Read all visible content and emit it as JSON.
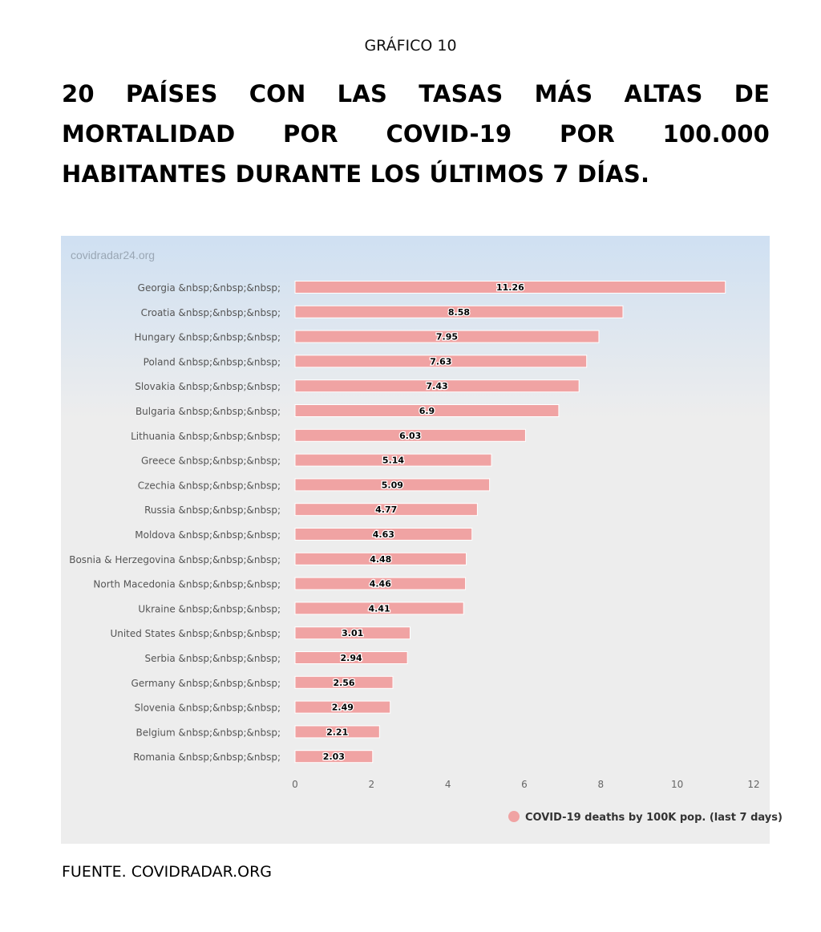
{
  "header": {
    "kicker": "GRÁFICO 10",
    "title": "20 PAÍSES CON LAS TASAS MÁS ALTAS DE MORTALIDAD POR COVID-19 POR 100.000 HABITANTES DURANTE LOS ÚLTIMOS 7 DÍAS."
  },
  "footer": {
    "source": "FUENTE. COVIDRADAR.ORG"
  },
  "chart_data": {
    "type": "bar",
    "orientation": "horizontal",
    "watermark": "covidradar24.org",
    "categories": [
      "Georgia &nbsp;&nbsp;&nbsp;",
      "Croatia &nbsp;&nbsp;&nbsp;",
      "Hungary &nbsp;&nbsp;&nbsp;",
      "Poland &nbsp;&nbsp;&nbsp;",
      "Slovakia &nbsp;&nbsp;&nbsp;",
      "Bulgaria &nbsp;&nbsp;&nbsp;",
      "Lithuania &nbsp;&nbsp;&nbsp;",
      "Greece &nbsp;&nbsp;&nbsp;",
      "Czechia &nbsp;&nbsp;&nbsp;",
      "Russia &nbsp;&nbsp;&nbsp;",
      "Moldova &nbsp;&nbsp;&nbsp;",
      "Bosnia & Herzegovina &nbsp;&nbsp;&nbsp;",
      "North Macedonia &nbsp;&nbsp;&nbsp;",
      "Ukraine &nbsp;&nbsp;&nbsp;",
      "United States &nbsp;&nbsp;&nbsp;",
      "Serbia &nbsp;&nbsp;&nbsp;",
      "Germany &nbsp;&nbsp;&nbsp;",
      "Slovenia &nbsp;&nbsp;&nbsp;",
      "Belgium &nbsp;&nbsp;&nbsp;",
      "Romania &nbsp;&nbsp;&nbsp;"
    ],
    "series": [
      {
        "name": "COVID-19 deaths by 100K pop. (last 7 days)",
        "values": [
          11.26,
          8.58,
          7.95,
          7.63,
          7.43,
          6.9,
          6.03,
          5.14,
          5.09,
          4.77,
          4.63,
          4.48,
          4.46,
          4.41,
          3.01,
          2.94,
          2.56,
          2.49,
          2.21,
          2.03
        ],
        "labels": [
          "11.26",
          "8.58",
          "7.95",
          "7.63",
          "7.43",
          "6.9",
          "6.03",
          "5.14",
          "5.09",
          "4.77",
          "4.63",
          "4.48",
          "4.46",
          "4.41",
          "3.01",
          "2.94",
          "2.56",
          "2.49",
          "2.21",
          "2.03"
        ],
        "color": "#f0a3a3"
      }
    ],
    "xlim": [
      0,
      12
    ],
    "xticks": [
      0,
      2,
      4,
      6,
      8,
      10,
      12
    ],
    "grid": false,
    "legend": "bottom-right",
    "background_top": "#cfe0f2",
    "background": "#ededed"
  }
}
